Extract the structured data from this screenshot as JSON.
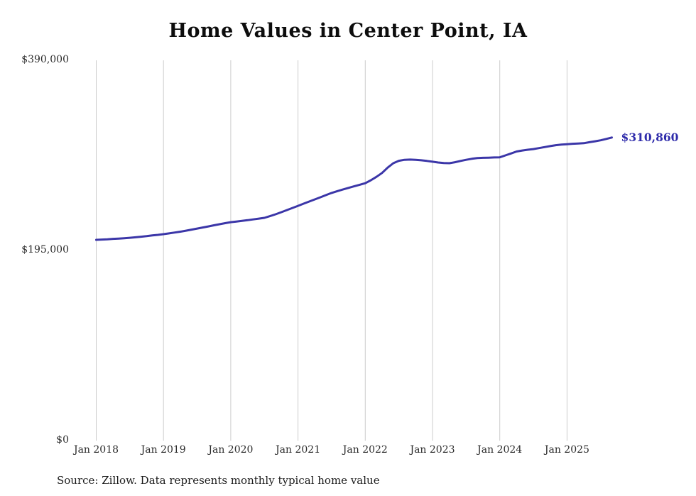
{
  "chart_data": {
    "type": "line",
    "title": "Home Values in Center Point, IA",
    "source": "Source: Zillow. Data represents monthly typical home value",
    "end_label": "$310,860",
    "latest_value": 310860,
    "frequency": "monthly",
    "start_month": "Jan 2018",
    "end_month": "Sep 2025",
    "ylim": [
      0,
      390000
    ],
    "y_ticks": [
      {
        "label": "$390,000",
        "value": 390000
      },
      {
        "label": "$195,000",
        "value": 195000
      },
      {
        "label": "$0",
        "value": 0
      }
    ],
    "x_ticks": [
      "Jan 2018",
      "Jan 2019",
      "Jan 2020",
      "Jan 2021",
      "Jan 2022",
      "Jan 2023",
      "Jan 2024",
      "Jan 2025"
    ],
    "line_color": "#3b36a8",
    "end_label_color": "#2f2cab",
    "grid_color": "#cccccc",
    "legend": "off",
    "series": [
      {
        "name": "Typical home value",
        "values": [
          205900,
          206200,
          206500,
          206900,
          207200,
          207600,
          208000,
          208500,
          209100,
          209700,
          210400,
          211000,
          211700,
          212500,
          213400,
          214300,
          215300,
          216400,
          217500,
          218600,
          219700,
          220800,
          221900,
          223000,
          224000,
          224700,
          225400,
          226100,
          226900,
          227700,
          228500,
          230200,
          232100,
          234200,
          236400,
          238600,
          240800,
          243000,
          245200,
          247400,
          249600,
          251800,
          254000,
          255800,
          257500,
          259200,
          260800,
          262400,
          264000,
          267000,
          270500,
          274500,
          280000,
          284500,
          287000,
          288000,
          288200,
          288000,
          287500,
          286800,
          286000,
          285200,
          284700,
          284500,
          285500,
          286800,
          288000,
          289000,
          289700,
          290000,
          290200,
          290400,
          290500,
          292500,
          294500,
          296500,
          297500,
          298300,
          299000,
          300000,
          301000,
          302000,
          303000,
          303600,
          304000,
          304400,
          304700,
          305000,
          306000,
          307000,
          308000,
          309400,
          310860
        ]
      }
    ]
  }
}
